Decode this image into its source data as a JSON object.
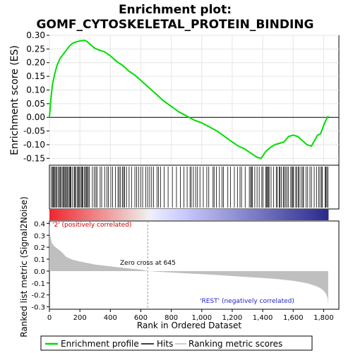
{
  "title_line1": "Enrichment plot:",
  "title_line2": "GOMF_CYTOSKELETAL_PROTEIN_BINDING",
  "es_axis_label": "Enrichment score (ES)",
  "metric_axis_label": "Ranked list metric (Signal2Noise)",
  "x_axis_label": "Rank in Ordered Dataset",
  "positive_label": "'2' (positively correlated)",
  "negative_label": "'REST' (negatively correlated)",
  "zero_cross_label": "Zero cross at 645",
  "legend": [
    {
      "label": "Enrichment profile",
      "color": "#00dd00"
    },
    {
      "label": "Hits",
      "color": "#000000"
    },
    {
      "label": "Ranking metric scores",
      "color": "#bfbfbf"
    }
  ],
  "chart_data": [
    {
      "type": "line",
      "panel": "enrichment-profile",
      "color": "#00dd00",
      "xlim": [
        0,
        1900
      ],
      "ylim": [
        -0.175,
        0.3
      ],
      "y_ticks": [
        -0.15,
        -0.1,
        -0.05,
        0.0,
        0.05,
        0.1,
        0.15,
        0.2,
        0.25,
        0.3
      ],
      "y_tick_labels": [
        "-0.15",
        "-0.10",
        "-0.05",
        "0.00",
        "0.05",
        "0.10",
        "0.15",
        "0.20",
        "0.25",
        "0.30"
      ],
      "grid": true,
      "zero_line": true,
      "x": [
        0,
        10,
        20,
        35,
        50,
        70,
        90,
        110,
        130,
        150,
        170,
        190,
        210,
        230,
        250,
        270,
        300,
        330,
        360,
        400,
        440,
        480,
        520,
        560,
        600,
        650,
        700,
        750,
        800,
        850,
        900,
        950,
        1000,
        1050,
        1100,
        1150,
        1200,
        1240,
        1280,
        1320,
        1360,
        1390,
        1420,
        1450,
        1480,
        1510,
        1540,
        1570,
        1600,
        1630,
        1660,
        1690,
        1720,
        1740,
        1760,
        1780,
        1800,
        1815,
        1830
      ],
      "y": [
        0.0,
        0.07,
        0.12,
        0.16,
        0.19,
        0.215,
        0.23,
        0.245,
        0.26,
        0.27,
        0.275,
        0.278,
        0.28,
        0.282,
        0.276,
        0.265,
        0.252,
        0.245,
        0.24,
        0.225,
        0.205,
        0.19,
        0.17,
        0.155,
        0.135,
        0.11,
        0.085,
        0.06,
        0.04,
        0.02,
        0.005,
        -0.01,
        -0.02,
        -0.035,
        -0.05,
        -0.07,
        -0.09,
        -0.105,
        -0.115,
        -0.13,
        -0.145,
        -0.15,
        -0.125,
        -0.11,
        -0.1,
        -0.095,
        -0.09,
        -0.07,
        -0.065,
        -0.07,
        -0.085,
        -0.1,
        -0.105,
        -0.085,
        -0.065,
        -0.06,
        -0.03,
        -0.01,
        0.005
      ]
    },
    {
      "type": "area",
      "panel": "ranked-list-metric",
      "color": "#bfbfbf",
      "xlim": [
        0,
        1900
      ],
      "ylim": [
        -0.32,
        0.42
      ],
      "y_ticks": [
        -0.3,
        -0.2,
        -0.1,
        0.0,
        0.1,
        0.2,
        0.3,
        0.4
      ],
      "y_tick_labels": [
        "-0.3",
        "-0.2",
        "-0.1",
        "0.0",
        "0.1",
        "0.2",
        "0.3",
        "0.4"
      ],
      "x_ticks": [
        0,
        200,
        400,
        600,
        800,
        1000,
        1200,
        1400,
        1600,
        1800
      ],
      "x_tick_labels": [
        "0",
        "200",
        "400",
        "600",
        "800",
        "1,000",
        "1,200",
        "1,400",
        "1,600",
        "1,800"
      ],
      "zero_cross": 645,
      "x": [
        0,
        5,
        15,
        30,
        50,
        80,
        110,
        150,
        200,
        300,
        400,
        500,
        600,
        645,
        700,
        800,
        900,
        1000,
        1100,
        1200,
        1300,
        1400,
        1500,
        1600,
        1650,
        1700,
        1750,
        1780,
        1800,
        1815,
        1825,
        1830
      ],
      "y": [
        0.41,
        0.3,
        0.24,
        0.21,
        0.19,
        0.16,
        0.12,
        0.095,
        0.08,
        0.055,
        0.04,
        0.025,
        0.012,
        0.0,
        -0.005,
        -0.012,
        -0.02,
        -0.026,
        -0.033,
        -0.042,
        -0.05,
        -0.058,
        -0.068,
        -0.082,
        -0.092,
        -0.105,
        -0.125,
        -0.145,
        -0.165,
        -0.19,
        -0.22,
        -0.28
      ]
    }
  ]
}
